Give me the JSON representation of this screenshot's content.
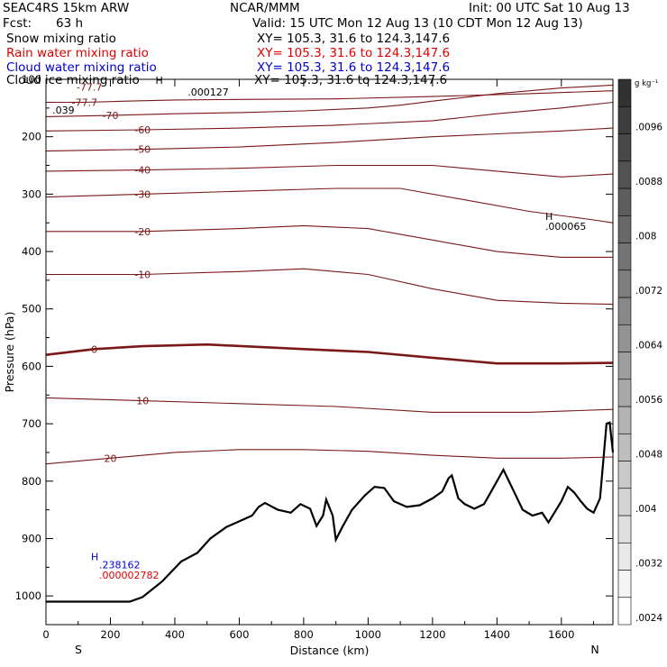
{
  "header": {
    "model": "SEAC4RS 15km ARW",
    "center": "NCAR/MMM",
    "init": "Init: 00 UTC Sat 10 Aug 13",
    "fcst_label": "Fcst:",
    "fcst_value": "63 h",
    "valid": "Valid: 15 UTC Mon 12 Aug 13 (10 CDT Mon 12 Aug 13)",
    "fields": [
      {
        "name": "Snow mixing ratio",
        "xy": "XY= 105.3, 31.6 to 124.3,147.6",
        "color": "#000000"
      },
      {
        "name": "Rain water mixing ratio",
        "xy": "XY= 105.3, 31.6 to 124.3,147.6",
        "color": "#e00000"
      },
      {
        "name": "Cloud water mixing ratio",
        "xy": "XY= 105.3, 31.6 to 124.3,147.6",
        "color": "#0000cc"
      },
      {
        "name": "Cloud ice mixing ratio",
        "xy": "XY= 105.3, 31.6 to 124.3,147.6",
        "color": "#000000"
      }
    ]
  },
  "chart_data": {
    "type": "cross-section contour",
    "xlabel": "Distance (km)",
    "ylabel": "Pressure (hPa)",
    "xlim": [
      0,
      1760
    ],
    "ylim": [
      1050,
      100
    ],
    "x_ticks": [
      0,
      200,
      400,
      600,
      800,
      1000,
      1200,
      1400,
      1600
    ],
    "y_ticks": [
      200,
      300,
      400,
      500,
      600,
      700,
      800,
      900,
      1000
    ],
    "y_tick_labels": [
      "200",
      "300",
      "400",
      "500",
      "600",
      "700",
      "800",
      "900",
      "1000"
    ],
    "y_top_label": "100",
    "end_labels": {
      "left": "S",
      "right": "N"
    },
    "colorbar": {
      "unit": "g kg⁻¹",
      "labels": [
        ".0096",
        ".0088",
        ".008",
        ".0072",
        ".0064",
        ".0056",
        ".0048",
        ".004",
        ".0032",
        ".0024"
      ],
      "label_values": [
        0.0096,
        0.0088,
        0.008,
        0.0072,
        0.0064,
        0.0056,
        0.0048,
        0.004,
        0.0032,
        0.0024
      ],
      "levels": [
        0.0024,
        0.0028,
        0.0032,
        0.0036,
        0.004,
        0.0044,
        0.0048,
        0.0052,
        0.0056,
        0.006,
        0.0064,
        0.0068,
        0.0072,
        0.0076,
        0.008,
        0.0084,
        0.0088,
        0.0092,
        0.0096,
        0.01
      ]
    },
    "isotherm_color": "#7a1818",
    "terrain": [
      [
        0,
        1010
      ],
      [
        260,
        1010
      ],
      [
        300,
        1002
      ],
      [
        360,
        975
      ],
      [
        420,
        940
      ],
      [
        470,
        925
      ],
      [
        510,
        900
      ],
      [
        560,
        880
      ],
      [
        600,
        870
      ],
      [
        640,
        860
      ],
      [
        660,
        845
      ],
      [
        680,
        838
      ],
      [
        720,
        850
      ],
      [
        760,
        855
      ],
      [
        790,
        840
      ],
      [
        820,
        848
      ],
      [
        840,
        878
      ],
      [
        860,
        860
      ],
      [
        870,
        832
      ],
      [
        890,
        860
      ],
      [
        900,
        902
      ],
      [
        920,
        880
      ],
      [
        950,
        850
      ],
      [
        990,
        825
      ],
      [
        1020,
        810
      ],
      [
        1050,
        812
      ],
      [
        1080,
        835
      ],
      [
        1120,
        845
      ],
      [
        1160,
        842
      ],
      [
        1200,
        830
      ],
      [
        1230,
        818
      ],
      [
        1250,
        795
      ],
      [
        1260,
        790
      ],
      [
        1280,
        830
      ],
      [
        1300,
        840
      ],
      [
        1330,
        848
      ],
      [
        1360,
        840
      ],
      [
        1390,
        810
      ],
      [
        1420,
        780
      ],
      [
        1450,
        815
      ],
      [
        1480,
        850
      ],
      [
        1510,
        860
      ],
      [
        1540,
        855
      ],
      [
        1560,
        872
      ],
      [
        1600,
        835
      ],
      [
        1620,
        810
      ],
      [
        1640,
        820
      ],
      [
        1660,
        835
      ],
      [
        1680,
        848
      ],
      [
        1700,
        855
      ],
      [
        1720,
        830
      ],
      [
        1740,
        700
      ],
      [
        1750,
        698
      ],
      [
        1760,
        750
      ]
    ],
    "isotherms": [
      {
        "label": "-77.7",
        "points": [
          [
            0,
            140
          ],
          [
            120,
            140
          ],
          [
            250,
            138
          ],
          [
            400,
            136
          ],
          [
            600,
            135
          ],
          [
            900,
            134
          ],
          [
            1200,
            130
          ],
          [
            1500,
            125
          ],
          [
            1760,
            120
          ]
        ]
      },
      {
        "label": "-70",
        "points": [
          [
            0,
            165
          ],
          [
            200,
            163
          ],
          [
            400,
            160
          ],
          [
            600,
            158
          ],
          [
            800,
            155
          ],
          [
            1000,
            150
          ],
          [
            1100,
            145
          ],
          [
            1200,
            138
          ],
          [
            1400,
            125
          ],
          [
            1600,
            115
          ],
          [
            1760,
            110
          ]
        ]
      },
      {
        "label": "-60",
        "points": [
          [
            0,
            190
          ],
          [
            300,
            188
          ],
          [
            600,
            185
          ],
          [
            900,
            180
          ],
          [
            1200,
            172
          ],
          [
            1400,
            160
          ],
          [
            1600,
            150
          ],
          [
            1760,
            140
          ]
        ]
      },
      {
        "label": "-50",
        "points": [
          [
            0,
            225
          ],
          [
            300,
            222
          ],
          [
            600,
            218
          ],
          [
            900,
            210
          ],
          [
            1200,
            200
          ],
          [
            1400,
            195
          ],
          [
            1600,
            190
          ],
          [
            1760,
            185
          ]
        ]
      },
      {
        "label": "-40",
        "points": [
          [
            0,
            260
          ],
          [
            300,
            258
          ],
          [
            600,
            255
          ],
          [
            900,
            250
          ],
          [
            1200,
            250
          ],
          [
            1400,
            260
          ],
          [
            1600,
            270
          ],
          [
            1760,
            265
          ]
        ]
      },
      {
        "label": "-30",
        "points": [
          [
            0,
            305
          ],
          [
            300,
            300
          ],
          [
            600,
            295
          ],
          [
            900,
            290
          ],
          [
            1100,
            290
          ],
          [
            1300,
            310
          ],
          [
            1500,
            330
          ],
          [
            1700,
            345
          ],
          [
            1760,
            350
          ]
        ]
      },
      {
        "label": "-20",
        "points": [
          [
            0,
            365
          ],
          [
            300,
            365
          ],
          [
            600,
            360
          ],
          [
            800,
            355
          ],
          [
            1000,
            360
          ],
          [
            1200,
            380
          ],
          [
            1400,
            400
          ],
          [
            1600,
            410
          ],
          [
            1760,
            410
          ]
        ]
      },
      {
        "label": "-10",
        "points": [
          [
            0,
            440
          ],
          [
            300,
            440
          ],
          [
            600,
            435
          ],
          [
            800,
            430
          ],
          [
            1000,
            440
          ],
          [
            1200,
            465
          ],
          [
            1400,
            485
          ],
          [
            1600,
            490
          ],
          [
            1760,
            492
          ]
        ]
      },
      {
        "label": "0",
        "bold": true,
        "points": [
          [
            0,
            580
          ],
          [
            150,
            570
          ],
          [
            300,
            565
          ],
          [
            500,
            562
          ],
          [
            800,
            570
          ],
          [
            1000,
            575
          ],
          [
            1200,
            585
          ],
          [
            1400,
            595
          ],
          [
            1600,
            595
          ],
          [
            1760,
            594
          ]
        ]
      },
      {
        "label": "10",
        "points": [
          [
            0,
            655
          ],
          [
            300,
            660
          ],
          [
            600,
            665
          ],
          [
            900,
            670
          ],
          [
            1200,
            680
          ],
          [
            1500,
            680
          ],
          [
            1760,
            675
          ]
        ]
      },
      {
        "label": "20",
        "points": [
          [
            0,
            770
          ],
          [
            200,
            760
          ],
          [
            400,
            750
          ],
          [
            600,
            745
          ],
          [
            800,
            745
          ],
          [
            1000,
            748
          ],
          [
            1200,
            755
          ],
          [
            1400,
            760
          ],
          [
            1600,
            760
          ],
          [
            1760,
            758
          ]
        ]
      }
    ],
    "annotations": [
      {
        "text": "-77.7",
        "color": "#7a1818",
        "x": 95,
        "p": 120
      },
      {
        "text": ".000127",
        "color": "#000000",
        "x": 440,
        "p": 128
      },
      {
        "text": "H",
        "color": "#000000",
        "x": 340,
        "p": 108
      },
      {
        "text": ".039",
        "color": "#000000",
        "x": 20,
        "p": 160
      },
      {
        "text": "H",
        "color": "#000000",
        "x": 1550,
        "p": 345
      },
      {
        "text": ".000065",
        "color": "#000000",
        "x": 1550,
        "p": 362
      },
      {
        "text": "H",
        "color": "#0000cc",
        "x": 140,
        "p": 938
      },
      {
        "text": ".238162",
        "color": "#0000cc",
        "x": 165,
        "p": 952
      },
      {
        "text": ".000002782",
        "color": "#e00000",
        "x": 165,
        "p": 970
      }
    ]
  }
}
